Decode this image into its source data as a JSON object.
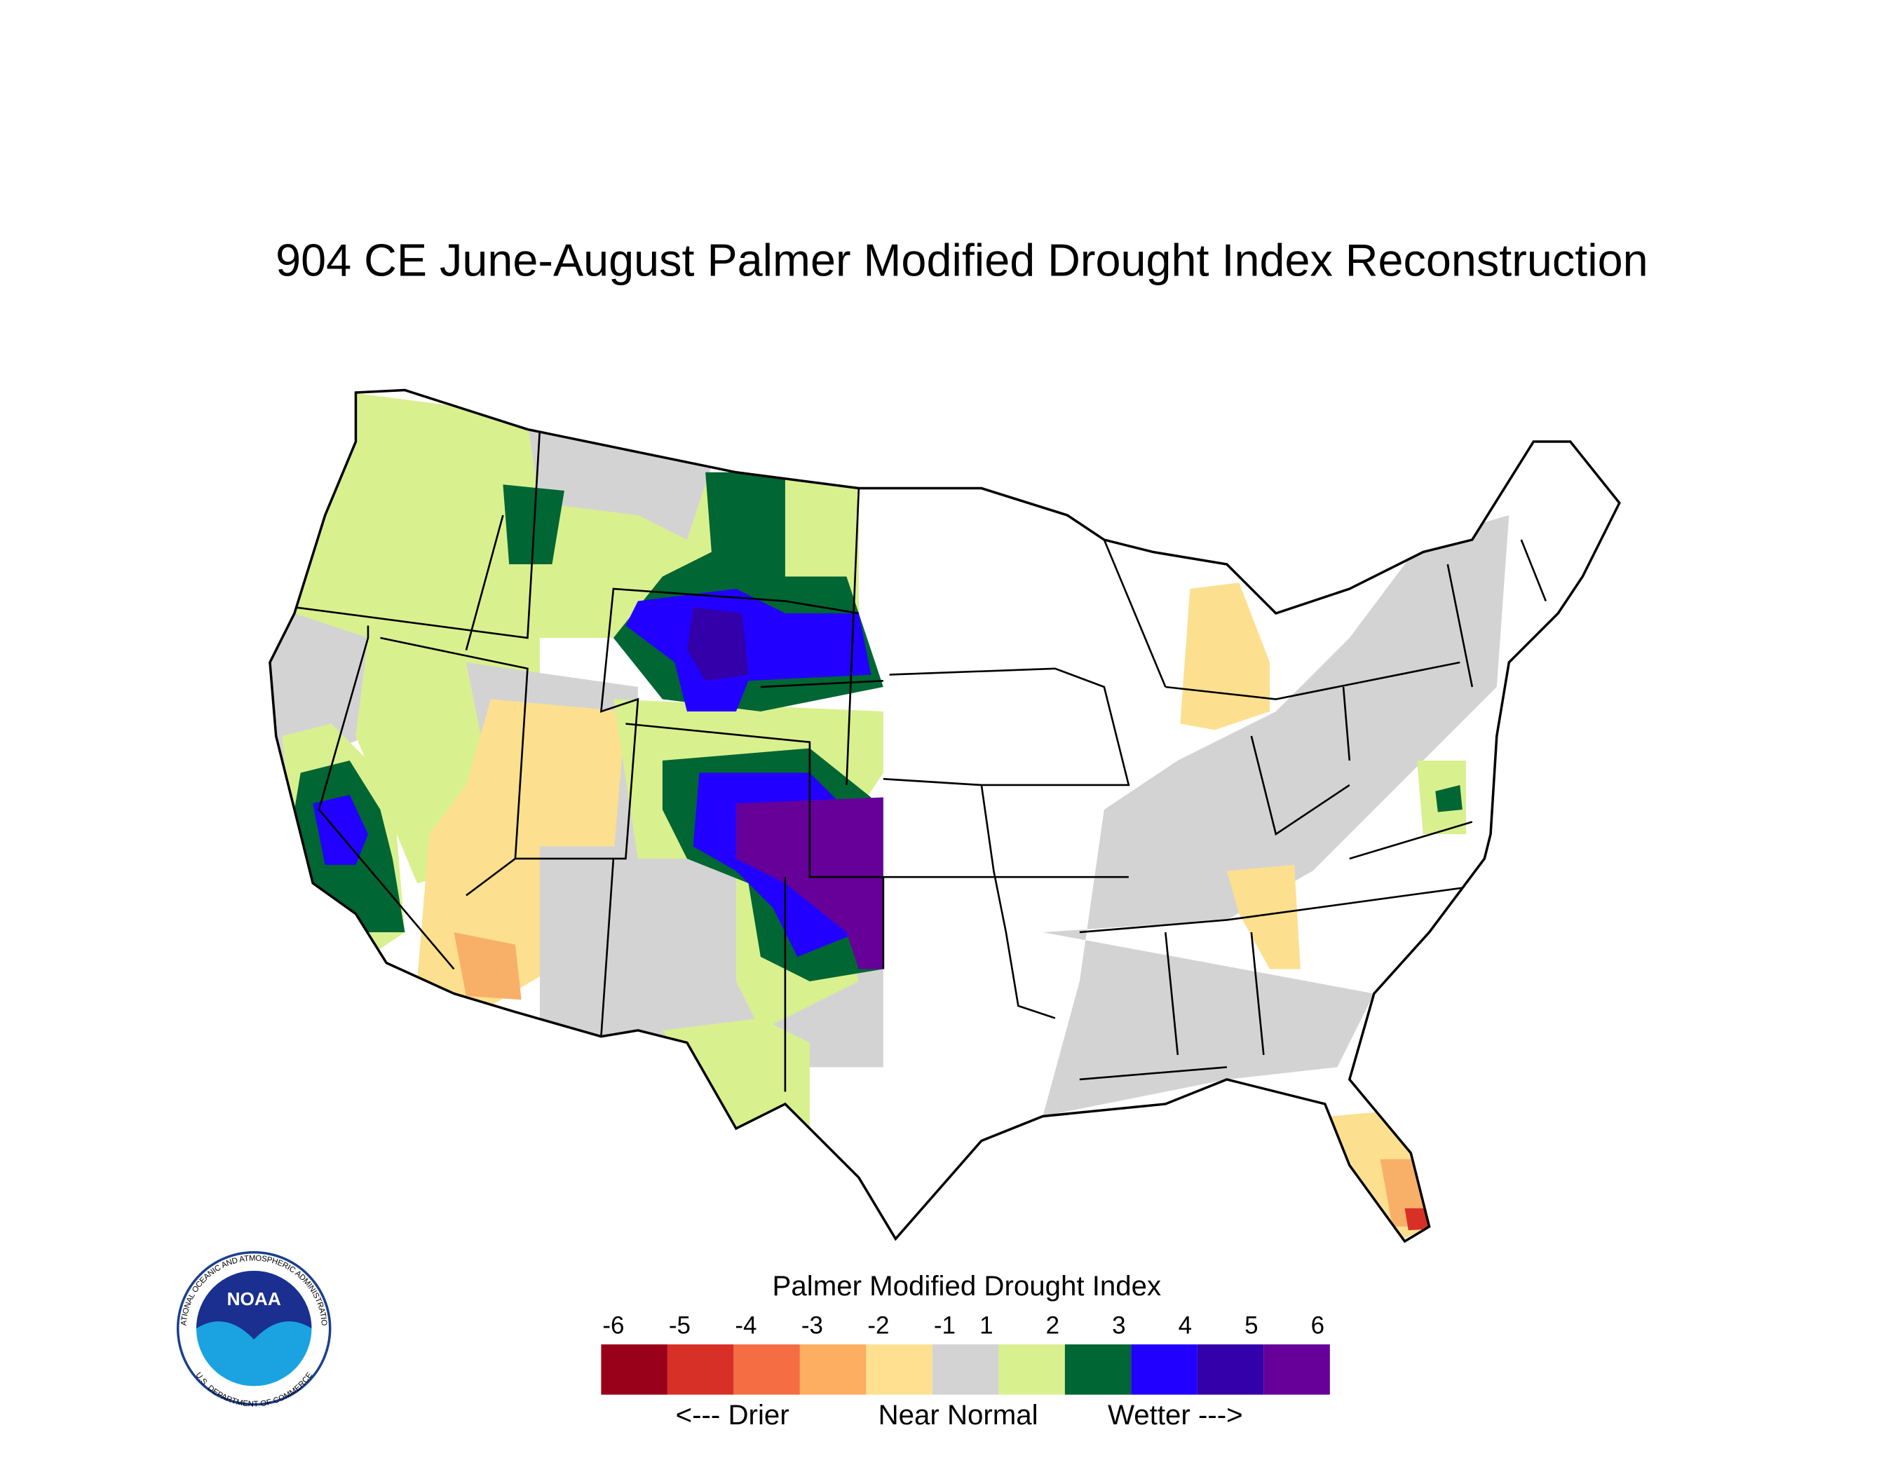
{
  "title": "904 CE  June-August  Palmer Modified Drought Index Reconstruction",
  "legend": {
    "title": "Palmer Modified Drought Index",
    "ticks": [
      -6,
      -5,
      -4,
      -3,
      -2,
      -1,
      1,
      2,
      3,
      4,
      5,
      6
    ],
    "colors": [
      "#99001a",
      "#d73027",
      "#f46d43",
      "#fdae61",
      "#fee090",
      "#d3d3d3",
      "#d9f08f",
      "#006633",
      "#2200ff",
      "#3300aa",
      "#660099"
    ],
    "annotations": [
      "<--- Drier",
      "Near Normal",
      "Wetter --->"
    ]
  },
  "logo": {
    "text": "NOAA",
    "ring_top": "NATIONAL OCEANIC AND ATMOSPHERIC ADMINISTRATION",
    "ring_bottom": "U.S. DEPARTMENT OF COMMERCE"
  }
}
